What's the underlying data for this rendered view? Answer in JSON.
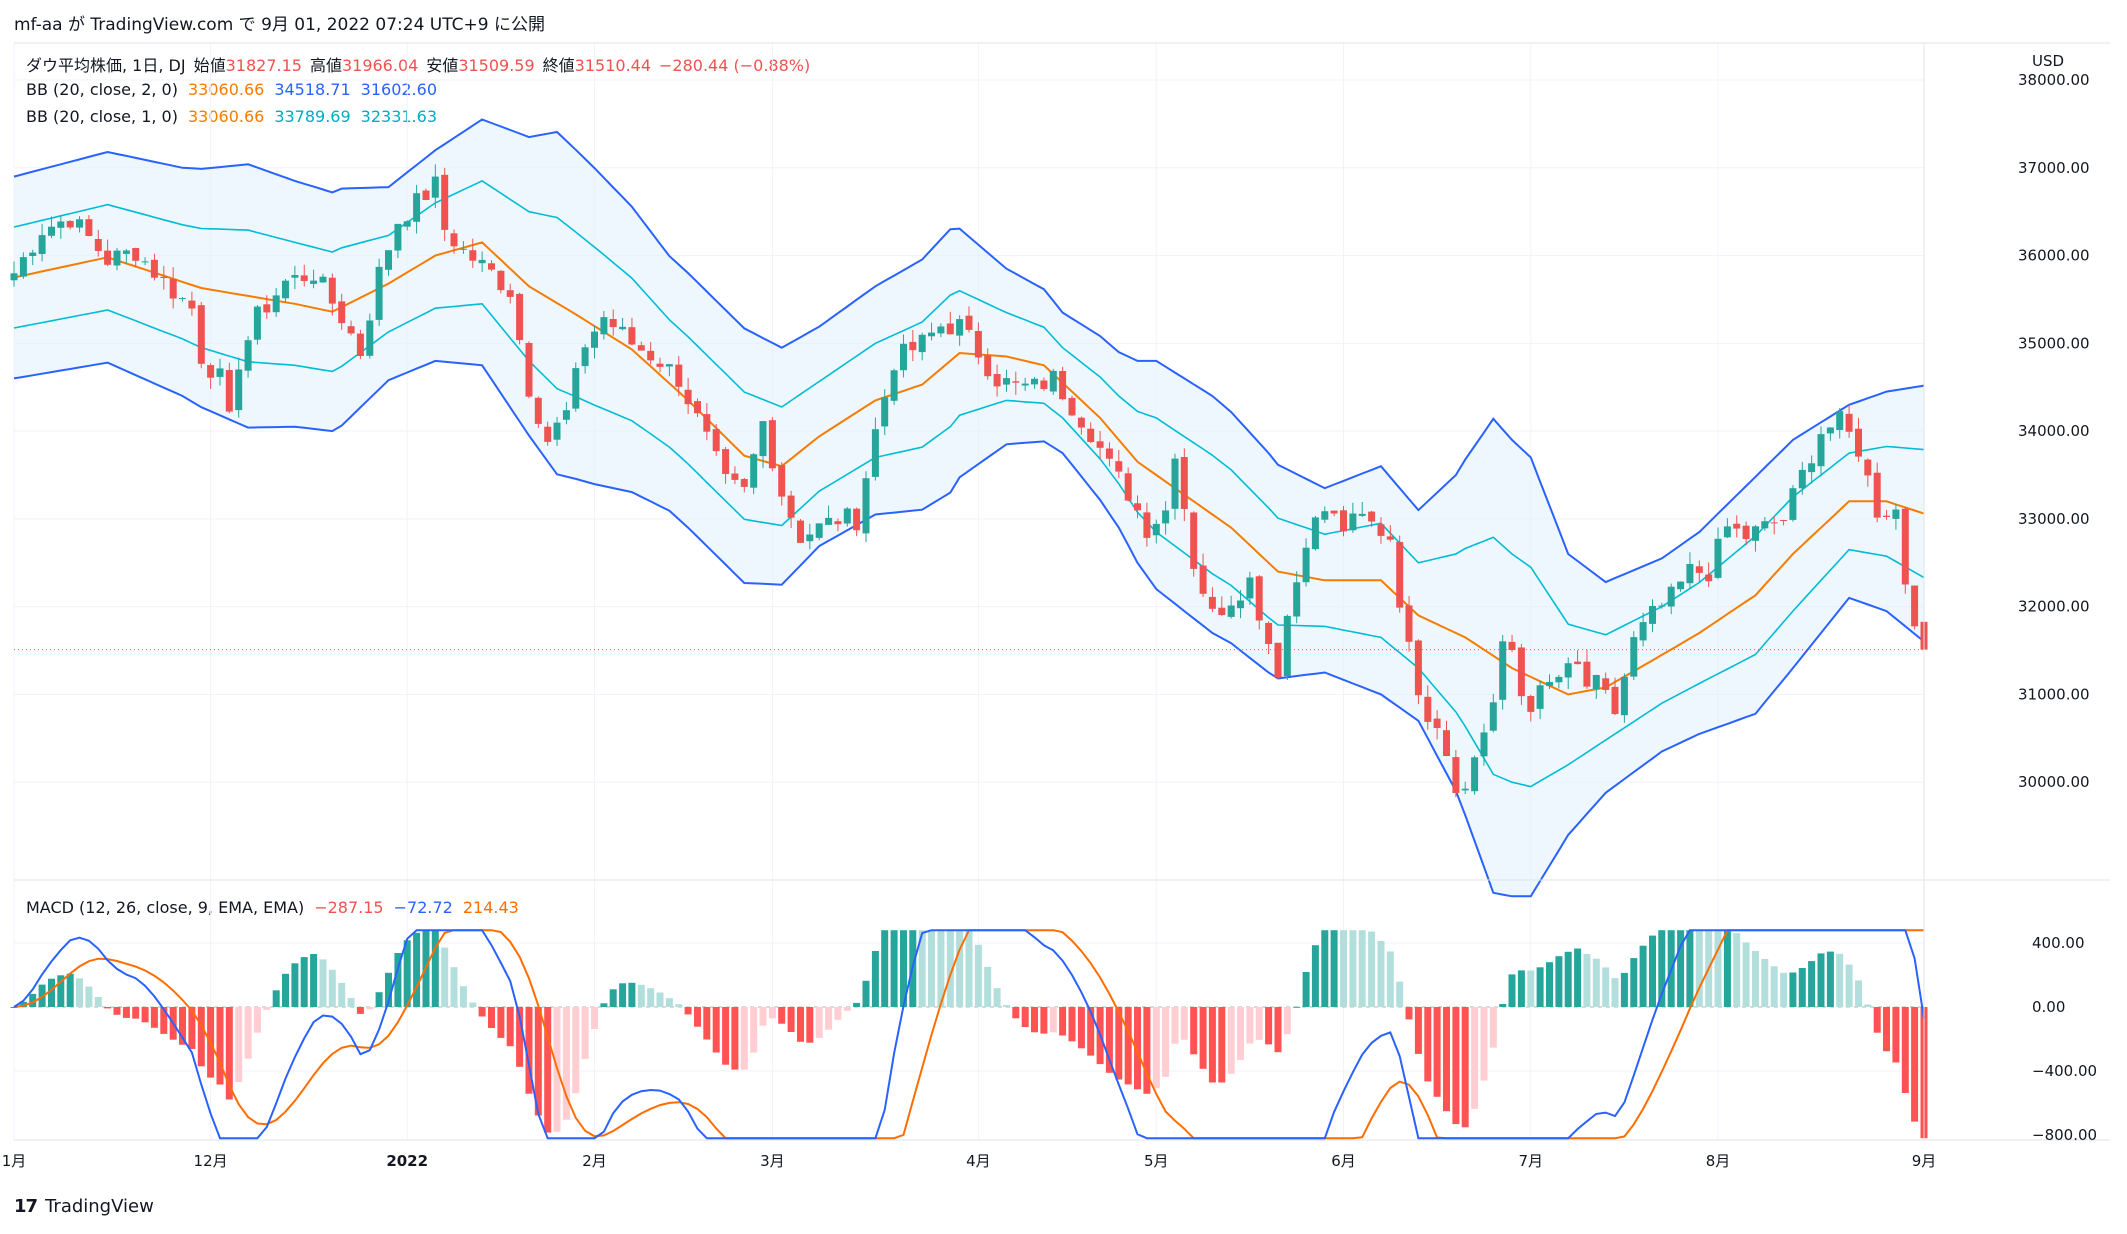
{
  "header": {
    "publish_line": "mf-aa が TradingView.com で 9月 01, 2022 07:24 UTC+9 に公開"
  },
  "ohlc_legend": {
    "symbol": "ダウ平均株価, 1日, DJ",
    "open_label": "始値",
    "open": "31827.15",
    "high_label": "高値",
    "high": "31966.04",
    "low_label": "安値",
    "low": "31509.59",
    "close_label": "終値",
    "close": "31510.44",
    "change": "−280.44 (−0.88%)"
  },
  "bb2_legend": {
    "label": "BB (20, close, 2, 0)",
    "basis": "33060.66",
    "upper": "34518.71",
    "lower": "31602.60"
  },
  "bb1_legend": {
    "label": "BB (20, close, 1, 0)",
    "basis": "33060.66",
    "upper": "33789.69",
    "lower": "32331.63"
  },
  "macd_legend": {
    "label": "MACD (12, 26, close, 9, EMA, EMA)",
    "hist": "−287.15",
    "macd": "−72.72",
    "signal": "214.43"
  },
  "currency": "USD",
  "footer": {
    "brand": "TradingView",
    "logo": "17"
  },
  "colors": {
    "up": "#26a69a",
    "down": "#ef5350",
    "bb2_line": "#2962ff",
    "bb1_line": "#00bcd4",
    "basis": "#f57c00",
    "fill": "#e3f2fd",
    "macd": "#2962ff",
    "signal": "#ff6d00",
    "hist_up_strong": "#26a69a",
    "hist_up_weak": "#b2dfdb",
    "hist_down_strong": "#ff5252",
    "hist_down_weak": "#ffcdd2"
  },
  "chart_data": [
    {
      "type": "candlestick",
      "title": "ダウ平均株価, 1日, DJ",
      "ylabel": "USD",
      "ylim": [
        29000,
        38000
      ],
      "y_ticks": [
        "30000.00",
        "31000.00",
        "32000.00",
        "33000.00",
        "34000.00",
        "35000.00",
        "36000.00",
        "37000.00",
        "38000.00"
      ],
      "x_ticks": [
        {
          "label": "1月",
          "day": 0
        },
        {
          "label": "12月",
          "day": 21
        },
        {
          "label": "2022",
          "day": 42
        },
        {
          "label": "2月",
          "day": 62
        },
        {
          "label": "3月",
          "day": 81
        },
        {
          "label": "4月",
          "day": 103
        },
        {
          "label": "5月",
          "day": 122
        },
        {
          "label": "6月",
          "day": 142
        },
        {
          "label": "7月",
          "day": 162
        },
        {
          "label": "8月",
          "day": 182
        },
        {
          "label": "9月",
          "day": 204
        }
      ],
      "last_price": 31510.44,
      "anchors": {
        "close": [
          [
            0,
            35800
          ],
          [
            3,
            36300
          ],
          [
            6,
            36430
          ],
          [
            8,
            36200
          ],
          [
            10,
            35950
          ],
          [
            13,
            36050
          ],
          [
            16,
            35700
          ],
          [
            19,
            35400
          ],
          [
            20,
            34850
          ],
          [
            22,
            34600
          ],
          [
            23,
            34100
          ],
          [
            24,
            34800
          ],
          [
            26,
            35300
          ],
          [
            29,
            35700
          ],
          [
            32,
            35800
          ],
          [
            35,
            35300
          ],
          [
            37,
            34900
          ],
          [
            39,
            35800
          ],
          [
            41,
            36400
          ],
          [
            43,
            36600
          ],
          [
            45,
            36800
          ],
          [
            46,
            36300
          ],
          [
            48,
            36050
          ],
          [
            51,
            35800
          ],
          [
            53,
            35600
          ],
          [
            55,
            34500
          ],
          [
            57,
            33900
          ],
          [
            59,
            34200
          ],
          [
            61,
            35000
          ],
          [
            63,
            35300
          ],
          [
            66,
            35000
          ],
          [
            69,
            34800
          ],
          [
            71,
            34600
          ],
          [
            74,
            33900
          ],
          [
            76,
            33400
          ],
          [
            78,
            33300
          ],
          [
            80,
            34100
          ],
          [
            82,
            33300
          ],
          [
            84,
            32800
          ],
          [
            86,
            32900
          ],
          [
            88,
            33000
          ],
          [
            90,
            33000
          ],
          [
            92,
            34000
          ],
          [
            94,
            34800
          ],
          [
            97,
            35000
          ],
          [
            99,
            35200
          ],
          [
            101,
            35200
          ],
          [
            103,
            34900
          ],
          [
            105,
            34600
          ],
          [
            107,
            34500
          ],
          [
            109,
            34500
          ],
          [
            111,
            34600
          ],
          [
            113,
            34300
          ],
          [
            115,
            34000
          ],
          [
            117,
            33600
          ],
          [
            119,
            33300
          ],
          [
            121,
            32900
          ],
          [
            123,
            33100
          ],
          [
            124,
            33800
          ],
          [
            126,
            32500
          ],
          [
            128,
            31900
          ],
          [
            130,
            32100
          ],
          [
            132,
            32300
          ],
          [
            134,
            31600
          ],
          [
            135,
            31300
          ],
          [
            136,
            31900
          ],
          [
            137,
            32300
          ],
          [
            138,
            32800
          ],
          [
            140,
            33100
          ],
          [
            142,
            32900
          ],
          [
            144,
            33000
          ],
          [
            147,
            32800
          ],
          [
            148,
            32100
          ],
          [
            149,
            31500
          ],
          [
            150,
            31100
          ],
          [
            151,
            30800
          ],
          [
            152,
            30700
          ],
          [
            154,
            30000
          ],
          [
            155,
            29900
          ],
          [
            156,
            30300
          ],
          [
            157,
            30600
          ],
          [
            158,
            30900
          ],
          [
            159,
            31500
          ],
          [
            160,
            31500
          ],
          [
            161,
            31000
          ],
          [
            162,
            30900
          ],
          [
            163,
            31000
          ],
          [
            165,
            31200
          ],
          [
            167,
            31300
          ],
          [
            168,
            31100
          ],
          [
            169,
            31100
          ],
          [
            171,
            30800
          ],
          [
            172,
            31200
          ],
          [
            173,
            31600
          ],
          [
            175,
            31900
          ],
          [
            177,
            32100
          ],
          [
            179,
            32400
          ],
          [
            181,
            32400
          ],
          [
            183,
            32900
          ],
          [
            185,
            32800
          ],
          [
            187,
            32900
          ],
          [
            189,
            33000
          ],
          [
            191,
            33500
          ],
          [
            193,
            34000
          ],
          [
            195,
            34100
          ],
          [
            197,
            33800
          ],
          [
            199,
            33100
          ],
          [
            201,
            33100
          ],
          [
            202,
            32300
          ],
          [
            203,
            31900
          ],
          [
            204,
            31510.44
          ]
        ],
        "bb_basis": [
          [
            0,
            35750
          ],
          [
            10,
            35980
          ],
          [
            20,
            35630
          ],
          [
            30,
            35450
          ],
          [
            34,
            35360
          ],
          [
            40,
            35680
          ],
          [
            45,
            36000
          ],
          [
            50,
            36150
          ],
          [
            55,
            35650
          ],
          [
            60,
            35330
          ],
          [
            66,
            34930
          ],
          [
            72,
            34350
          ],
          [
            78,
            33720
          ],
          [
            82,
            33600
          ],
          [
            86,
            33940
          ],
          [
            92,
            34350
          ],
          [
            97,
            34530
          ],
          [
            101,
            34890
          ],
          [
            106,
            34850
          ],
          [
            110,
            34750
          ],
          [
            116,
            34150
          ],
          [
            120,
            33650
          ],
          [
            126,
            33200
          ],
          [
            130,
            32900
          ],
          [
            135,
            32400
          ],
          [
            140,
            32300
          ],
          [
            146,
            32300
          ],
          [
            150,
            31900
          ],
          [
            155,
            31650
          ],
          [
            160,
            31300
          ],
          [
            166,
            31000
          ],
          [
            170,
            31080
          ],
          [
            176,
            31450
          ],
          [
            180,
            31700
          ],
          [
            186,
            32130
          ],
          [
            190,
            32600
          ],
          [
            196,
            33200
          ],
          [
            200,
            33200
          ],
          [
            204,
            33060.66
          ]
        ],
        "bb2_width": [
          [
            0,
            1150
          ],
          [
            10,
            1200
          ],
          [
            18,
            1300
          ],
          [
            25,
            1500
          ],
          [
            30,
            1400
          ],
          [
            35,
            1350
          ],
          [
            40,
            1100
          ],
          [
            45,
            1200
          ],
          [
            50,
            1400
          ],
          [
            55,
            1700
          ],
          [
            58,
            1950
          ],
          [
            62,
            1800
          ],
          [
            70,
            1450
          ],
          [
            78,
            1450
          ],
          [
            86,
            1250
          ],
          [
            92,
            1300
          ],
          [
            100,
            1500
          ],
          [
            106,
            1000
          ],
          [
            112,
            800
          ],
          [
            118,
            1000
          ],
          [
            122,
            1300
          ],
          [
            128,
            1350
          ],
          [
            134,
            1250
          ],
          [
            140,
            1050
          ],
          [
            146,
            1300
          ],
          [
            150,
            1200
          ],
          [
            154,
            1800
          ],
          [
            158,
            2700
          ],
          [
            162,
            2500
          ],
          [
            166,
            1600
          ],
          [
            170,
            1200
          ],
          [
            176,
            1100
          ],
          [
            180,
            1150
          ],
          [
            186,
            1350
          ],
          [
            190,
            1300
          ],
          [
            196,
            1100
          ],
          [
            200,
            1250
          ],
          [
            204,
            1458
          ]
        ]
      },
      "series": [
        {
          "name": "BB (20, close, 2, 0)",
          "basis": 33060.66,
          "upper": 34518.71,
          "lower": 31602.6
        },
        {
          "name": "BB (20, close, 1, 0)",
          "basis": 33060.66,
          "upper": 33789.69,
          "lower": 32331.63
        }
      ]
    },
    {
      "type": "macd",
      "title": "MACD (12, 26, close, 9, EMA, EMA)",
      "ylim": [
        -800,
        400
      ],
      "y_ticks": [
        "400.00",
        "0.00",
        "−400.00",
        "−800.00"
      ],
      "last": {
        "hist": -287.15,
        "macd": -72.72,
        "signal": 214.43
      }
    }
  ]
}
